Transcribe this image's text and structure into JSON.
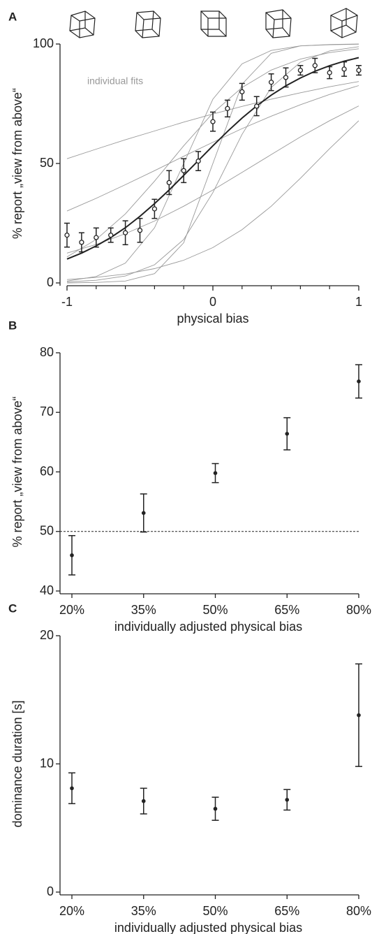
{
  "chart_data": [
    {
      "type": "psychometric",
      "panel": "A",
      "xlabel": "physical bias",
      "ylabel": "% report „view from above“",
      "x": [
        -1,
        -0.9,
        -0.8,
        -0.7,
        -0.6,
        -0.5,
        -0.4,
        -0.3,
        -0.2,
        -0.1,
        0,
        0.1,
        0.2,
        0.3,
        0.4,
        0.5,
        0.6,
        0.7,
        0.8,
        0.9,
        1
      ],
      "values": [
        20,
        17,
        19,
        20,
        21,
        22,
        31,
        42,
        47,
        51,
        67.5,
        73,
        80,
        74,
        84,
        86,
        89,
        91,
        88,
        89.5,
        89
      ],
      "errors": [
        5,
        4,
        4,
        3,
        5,
        5,
        4,
        5,
        5,
        4,
        4,
        3.5,
        3.5,
        4,
        3.5,
        4,
        2,
        3,
        2.5,
        3,
        2
      ],
      "fit_values": [
        10.0,
        12.5,
        15.5,
        19.0,
        23.1,
        27.9,
        33.2,
        38.9,
        45.0,
        51.2,
        57.4,
        63.4,
        69.0,
        74.1,
        78.6,
        82.5,
        85.8,
        88.6,
        90.9,
        92.8,
        94.3
      ],
      "color": "#222222",
      "individual_fits": {
        "label": "individual fits",
        "color": "#999999",
        "x": [
          -1,
          -0.8,
          -0.6,
          -0.4,
          -0.2,
          0,
          0.2,
          0.4,
          0.6,
          0.8,
          1
        ],
        "curves": [
          [
            0.0,
            0.2,
            0.8,
            3.9,
            16.8,
            50,
            83.2,
            96.1,
            99.2,
            99.8,
            100
          ],
          [
            10.9,
            18.2,
            28.9,
            42.6,
            57.4,
            71.1,
            81.8,
            89.1,
            93.7,
            96.4,
            98.0
          ],
          [
            30.1,
            35.4,
            41.1,
            47.0,
            53.0,
            58.9,
            64.6,
            69.8,
            74.6,
            78.9,
            82.6
          ],
          [
            12.5,
            16.1,
            20.6,
            25.9,
            32.1,
            38.9,
            46.3,
            53.7,
            61.1,
            67.9,
            74.1
          ],
          [
            0.8,
            2.7,
            8.3,
            23.1,
            50,
            76.9,
            91.7,
            97.3,
            99.2,
            99.7,
            99.9
          ],
          [
            1.4,
            2.3,
            3.7,
            6.0,
            9.5,
            14.8,
            22.3,
            32.1,
            43.8,
            56.2,
            67.9
          ],
          [
            52,
            56.0,
            59.9,
            63.6,
            67.3,
            70.7,
            73.9,
            76.9,
            79.6,
            82.1,
            84.3
          ],
          [
            0.4,
            1.1,
            2.9,
            7.6,
            18.2,
            37.8,
            62.2,
            81.8,
            92.4,
            97.1,
            98.9
          ]
        ]
      },
      "xlim": [
        -1,
        1
      ],
      "xticks": [
        -1,
        0,
        1
      ],
      "xticks_minor": [
        -0.8,
        -0.6,
        -0.4,
        -0.2,
        0.2,
        0.4,
        0.6,
        0.8
      ],
      "ylim": [
        0,
        100
      ],
      "yticks": [
        0,
        50,
        100
      ]
    },
    {
      "type": "errorbar",
      "panel": "B",
      "xlabel": "individually adjusted physical bias",
      "ylabel": "% report „view from above“",
      "categories": [
        "20%",
        "35%",
        "50%",
        "65%",
        "80%"
      ],
      "values": [
        46.0,
        53.1,
        59.8,
        66.4,
        75.2
      ],
      "errors": [
        3.3,
        3.2,
        1.6,
        2.7,
        2.8
      ],
      "color": "#222222",
      "hline": 50,
      "ylim": [
        40,
        80
      ],
      "yticks": [
        40,
        50,
        60,
        70,
        80
      ]
    },
    {
      "type": "errorbar",
      "panel": "C",
      "xlabel": "individually adjusted physical bias",
      "ylabel": "dominance duration [s]",
      "categories": [
        "20%",
        "35%",
        "50%",
        "65%",
        "80%"
      ],
      "values": [
        8.1,
        7.1,
        6.5,
        7.2,
        13.8
      ],
      "errors": [
        1.2,
        1.0,
        0.9,
        0.8,
        4.0
      ],
      "color": "#222222",
      "ylim": [
        0,
        20
      ],
      "yticks": [
        0,
        10,
        20
      ]
    }
  ]
}
